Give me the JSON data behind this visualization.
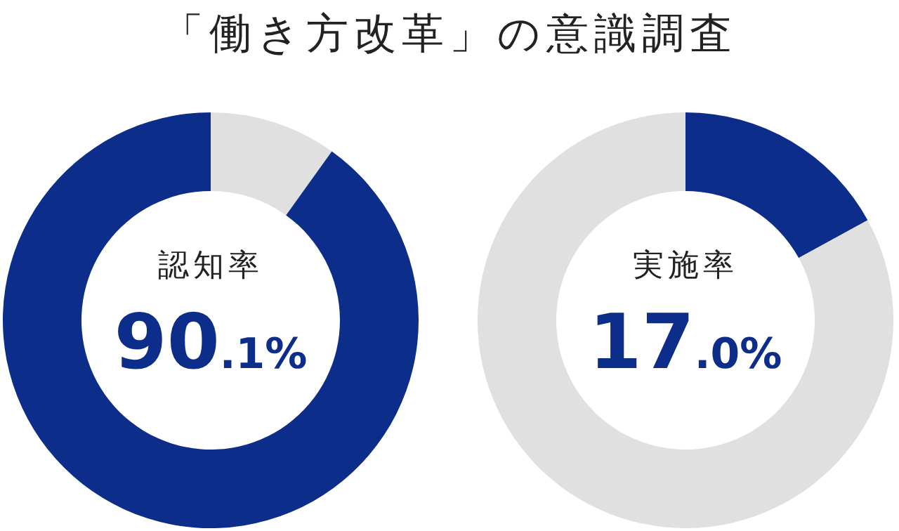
{
  "chart_data": [
    {
      "type": "donut",
      "title": "「働き方改革」の意識調査",
      "subtitle": "認知率",
      "categories": [
        null,
        null
      ],
      "values": [
        9.9,
        90.1
      ],
      "colors": [
        "#e0e0e0",
        "#0c2d8a"
      ],
      "annotations": [
        "90.1%"
      ]
    },
    {
      "type": "donut",
      "subtitle": "実施率",
      "categories": [
        null,
        null
      ],
      "values": [
        17.0,
        83.0
      ],
      "colors": [
        "#0c2d8a",
        "#e0e0e0"
      ],
      "annotations": [
        "17.0%"
      ]
    }
  ]
}
